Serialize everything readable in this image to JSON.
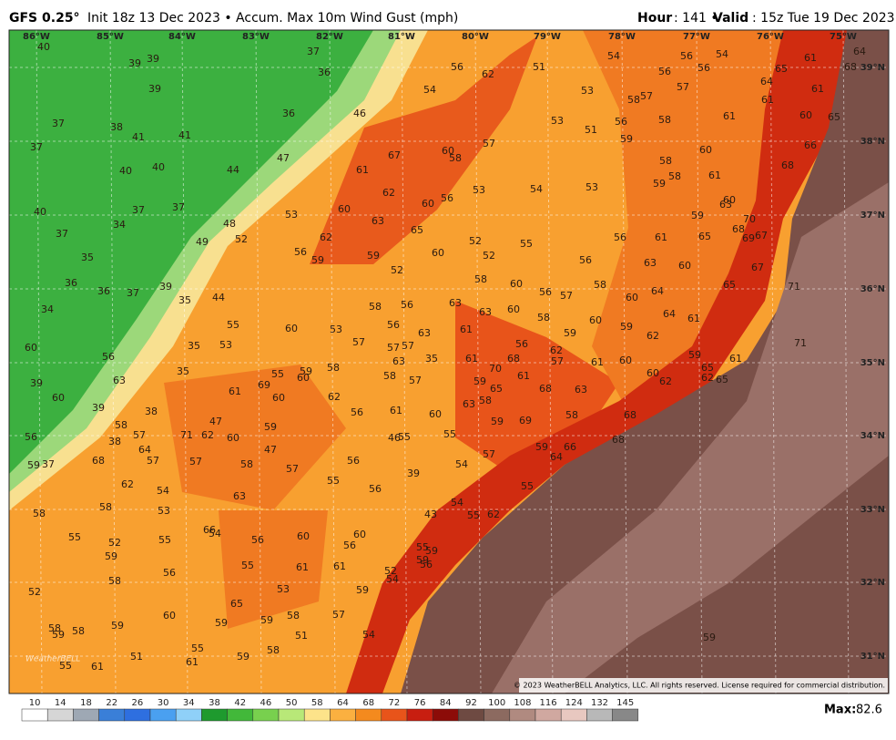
{
  "header": {
    "model": "GFS 0.25°",
    "subtitle": "Init 18z 13 Dec 2023 • Accum. Max 10m Wind Gust (mph)",
    "hour_label": "Hour",
    "hour_value": ": 141 • ",
    "valid_label": "Valid",
    "valid_value": ": 15z Tue 19 Dec 2023"
  },
  "map": {
    "lon_labels": [
      "86°W",
      "85°W",
      "84°W",
      "83°W",
      "82°W",
      "81°W",
      "80°W",
      "79°W",
      "78°W",
      "77°W",
      "76°W",
      "75°W"
    ],
    "lat_labels": [
      "39°N",
      "38°N",
      "37°N",
      "36°N",
      "35°N",
      "34°N",
      "33°N",
      "32°N",
      "31°N"
    ],
    "labels": [
      40,
      39,
      39,
      36,
      37,
      56,
      62,
      51,
      54,
      56,
      56,
      56,
      54,
      65,
      61,
      64,
      68,
      64,
      57,
      57,
      58,
      61,
      61,
      60,
      65,
      39,
      38,
      37,
      41,
      41,
      36,
      46,
      54,
      53,
      53,
      51,
      56,
      58,
      61,
      37,
      40,
      40,
      44,
      47,
      67,
      60,
      58,
      57,
      59,
      58,
      60,
      66,
      61,
      53,
      54,
      53,
      58,
      59,
      61,
      68,
      40,
      37,
      37,
      34,
      48,
      53,
      62,
      60,
      63,
      56,
      60,
      65,
      60,
      63,
      70,
      68,
      69,
      67,
      59,
      56,
      61,
      65,
      37,
      49,
      52,
      62,
      56,
      52,
      52,
      55,
      35,
      59,
      59,
      60,
      56,
      63,
      60,
      67,
      36,
      36,
      37,
      39,
      52,
      58,
      60,
      56,
      57,
      58,
      60,
      64,
      65,
      71,
      35,
      44,
      58,
      56,
      63,
      63,
      60,
      58,
      60,
      59,
      64,
      61,
      34,
      55,
      60,
      53,
      57,
      56,
      63,
      61,
      59,
      62,
      57,
      57,
      56,
      62,
      60,
      35,
      53,
      56,
      35,
      61,
      63,
      57,
      61,
      60,
      59,
      61,
      71,
      70,
      68,
      65,
      63,
      39,
      35,
      59,
      58,
      55,
      60,
      58,
      57,
      59,
      61,
      65,
      68,
      63,
      60,
      62,
      62,
      65,
      69,
      61,
      60,
      62,
      58,
      63,
      60,
      39,
      38,
      61,
      56,
      60,
      58,
      68,
      58,
      47,
      59,
      59,
      69,
      71,
      62,
      60,
      57,
      56,
      38,
      46,
      55,
      55,
      59,
      66,
      68,
      64,
      57,
      57,
      64,
      68,
      47,
      57,
      58,
      56,
      57,
      59,
      37,
      39,
      54,
      62,
      54,
      55,
      56,
      55,
      63,
      58,
      53,
      54,
      58,
      43,
      55,
      62,
      66,
      54,
      55,
      52,
      55,
      56,
      60,
      60,
      56,
      59,
      56,
      55,
      61,
      61,
      58,
      52,
      53,
      59,
      52,
      54,
      55,
      59,
      59,
      56,
      65,
      60,
      59,
      59,
      58,
      57,
      51,
      58,
      58,
      59,
      59,
      54,
      51,
      55,
      61,
      59,
      58,
      55,
      61,
      59
    ],
    "copyright": "© 2023 WeatherBELL Analytics, LLC. All rights reserved. License required for commercial distribution.",
    "logo": "WeatherBELL"
  },
  "colorbar": {
    "ticks": [
      10,
      14,
      18,
      22,
      26,
      30,
      34,
      38,
      42,
      46,
      50,
      58,
      64,
      68,
      72,
      76,
      84,
      92,
      100,
      108,
      116,
      124,
      132,
      145
    ],
    "colors": [
      "#ffffff",
      "#d6d6d6",
      "#9ea8b4",
      "#3a7fd8",
      "#2e6fe0",
      "#4aa0f0",
      "#8fd0f8",
      "#1e9a2e",
      "#42b83a",
      "#78d04e",
      "#b8e878",
      "#fde38a",
      "#fbb040",
      "#f48a1e",
      "#e8541a",
      "#c81e10",
      "#8c0c08",
      "#6e4a42",
      "#8c6a60",
      "#b08a80",
      "#d0a8a0",
      "#e8c8c0",
      "#b8b8b8",
      "#888888"
    ],
    "max_label": "Max:",
    "max_value": 82.6
  }
}
